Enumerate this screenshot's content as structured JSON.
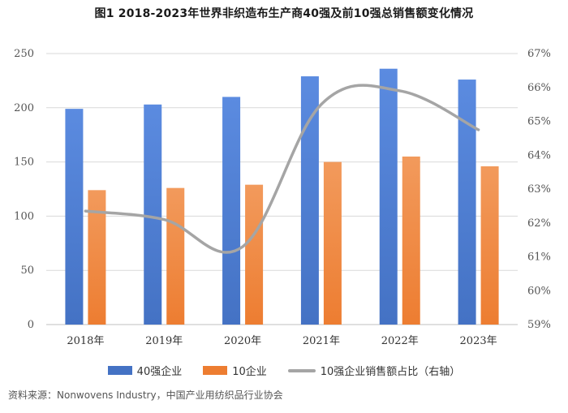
{
  "title": "图1  2018-2023年世界非织造布生产商40强及前10强总销售额变化情况",
  "source": "资料来源：Nonwovens Industry，中国产业用纺织品行业协会",
  "colors": {
    "bar40": "#4472C4",
    "bar10": "#ED7D31",
    "line": "#A5A5A5",
    "grid": "#D9D9D9"
  },
  "chart_data": {
    "type": "bar",
    "categories": [
      "2018年",
      "2019年",
      "2020年",
      "2021年",
      "2022年",
      "2023年"
    ],
    "series": [
      {
        "name": "40强企业",
        "axis": "left",
        "values": [
          199,
          203,
          210,
          229,
          236,
          226
        ]
      },
      {
        "name": "10企业",
        "axis": "left",
        "values": [
          124,
          126,
          129,
          150,
          155,
          146
        ]
      },
      {
        "name": "10强企业销售额占比（右轴）",
        "type": "line",
        "axis": "right",
        "smooth": true,
        "values": [
          62.35,
          62.1,
          61.3,
          65.5,
          65.9,
          64.75
        ]
      }
    ],
    "ylim": [
      0,
      250
    ],
    "yticks": [
      "0",
      "50",
      "100",
      "150",
      "200",
      "250"
    ],
    "y2lim": [
      59,
      67
    ],
    "y2ticks": [
      "59%",
      "60%",
      "61%",
      "62%",
      "63%",
      "64%",
      "65%",
      "66%",
      "67%"
    ],
    "grid": true,
    "legend": "bottom"
  }
}
